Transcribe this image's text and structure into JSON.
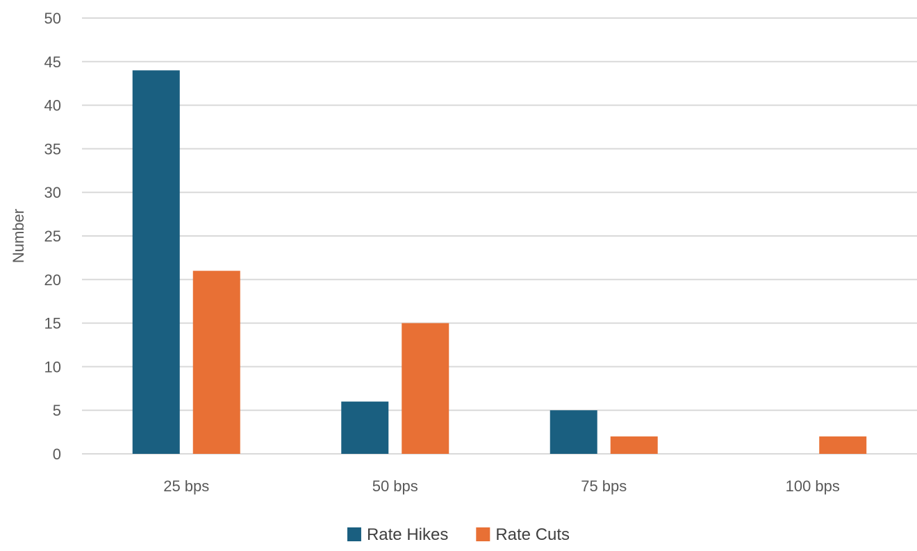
{
  "chart_data": {
    "type": "bar",
    "title": "",
    "xlabel": "",
    "ylabel": "Number",
    "categories": [
      "25 bps",
      "50 bps",
      "75 bps",
      "100 bps"
    ],
    "series": [
      {
        "name": "Rate Hikes",
        "color": "#1a5f80",
        "values": [
          44,
          6,
          5,
          0
        ]
      },
      {
        "name": "Rate Cuts",
        "color": "#e87035",
        "values": [
          21,
          15,
          2,
          2
        ]
      }
    ],
    "ylim": [
      0,
      50
    ],
    "yticks": [
      0,
      5,
      10,
      15,
      20,
      25,
      30,
      35,
      40,
      45,
      50
    ],
    "grid": true,
    "legend_position": "bottom"
  }
}
